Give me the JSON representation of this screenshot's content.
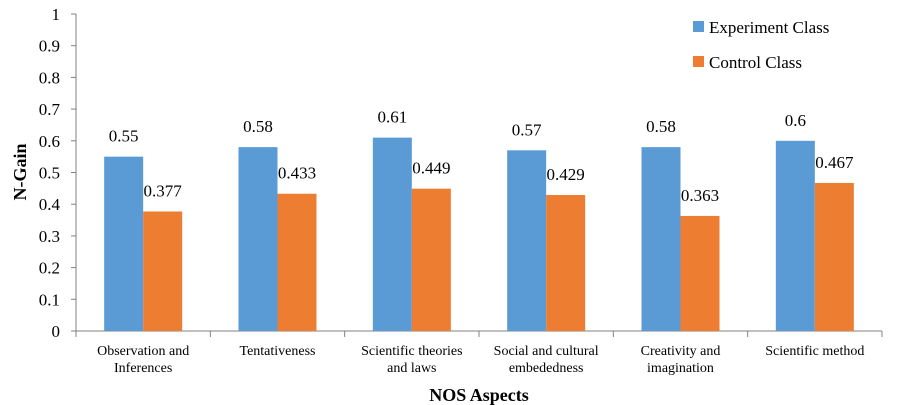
{
  "chart_data": {
    "type": "bar",
    "title": "",
    "xlabel": "NOS Aspects",
    "ylabel": "N-Gain",
    "ylim": [
      0,
      1
    ],
    "yticks": [
      "0",
      "0.1",
      "0.2",
      "0.3",
      "0.4",
      "0.5",
      "0.6",
      "0.7",
      "0.8",
      "0.9",
      "1"
    ],
    "categories": [
      [
        "Observation and",
        "Inferences"
      ],
      [
        "Tentativeness"
      ],
      [
        "Scientific theories",
        "and laws"
      ],
      [
        "Social and cultural",
        "embededness"
      ],
      [
        "Creativity and",
        "imagination"
      ],
      [
        "Scientific method"
      ]
    ],
    "series": [
      {
        "name": "Experiment Class",
        "color": "#5B9BD5",
        "values": [
          0.55,
          0.58,
          0.61,
          0.57,
          0.58,
          0.6
        ],
        "labels": [
          "0.55",
          "0.58",
          "0.61",
          "0.57",
          "0.58",
          "0.6"
        ]
      },
      {
        "name": "Control Class",
        "color": "#ED7D31",
        "values": [
          0.377,
          0.433,
          0.449,
          0.429,
          0.363,
          0.467
        ],
        "labels": [
          "0.377",
          "0.433",
          "0.449",
          "0.429",
          "0.363",
          "0.467"
        ]
      }
    ],
    "legend": "top-right",
    "grid": false
  }
}
